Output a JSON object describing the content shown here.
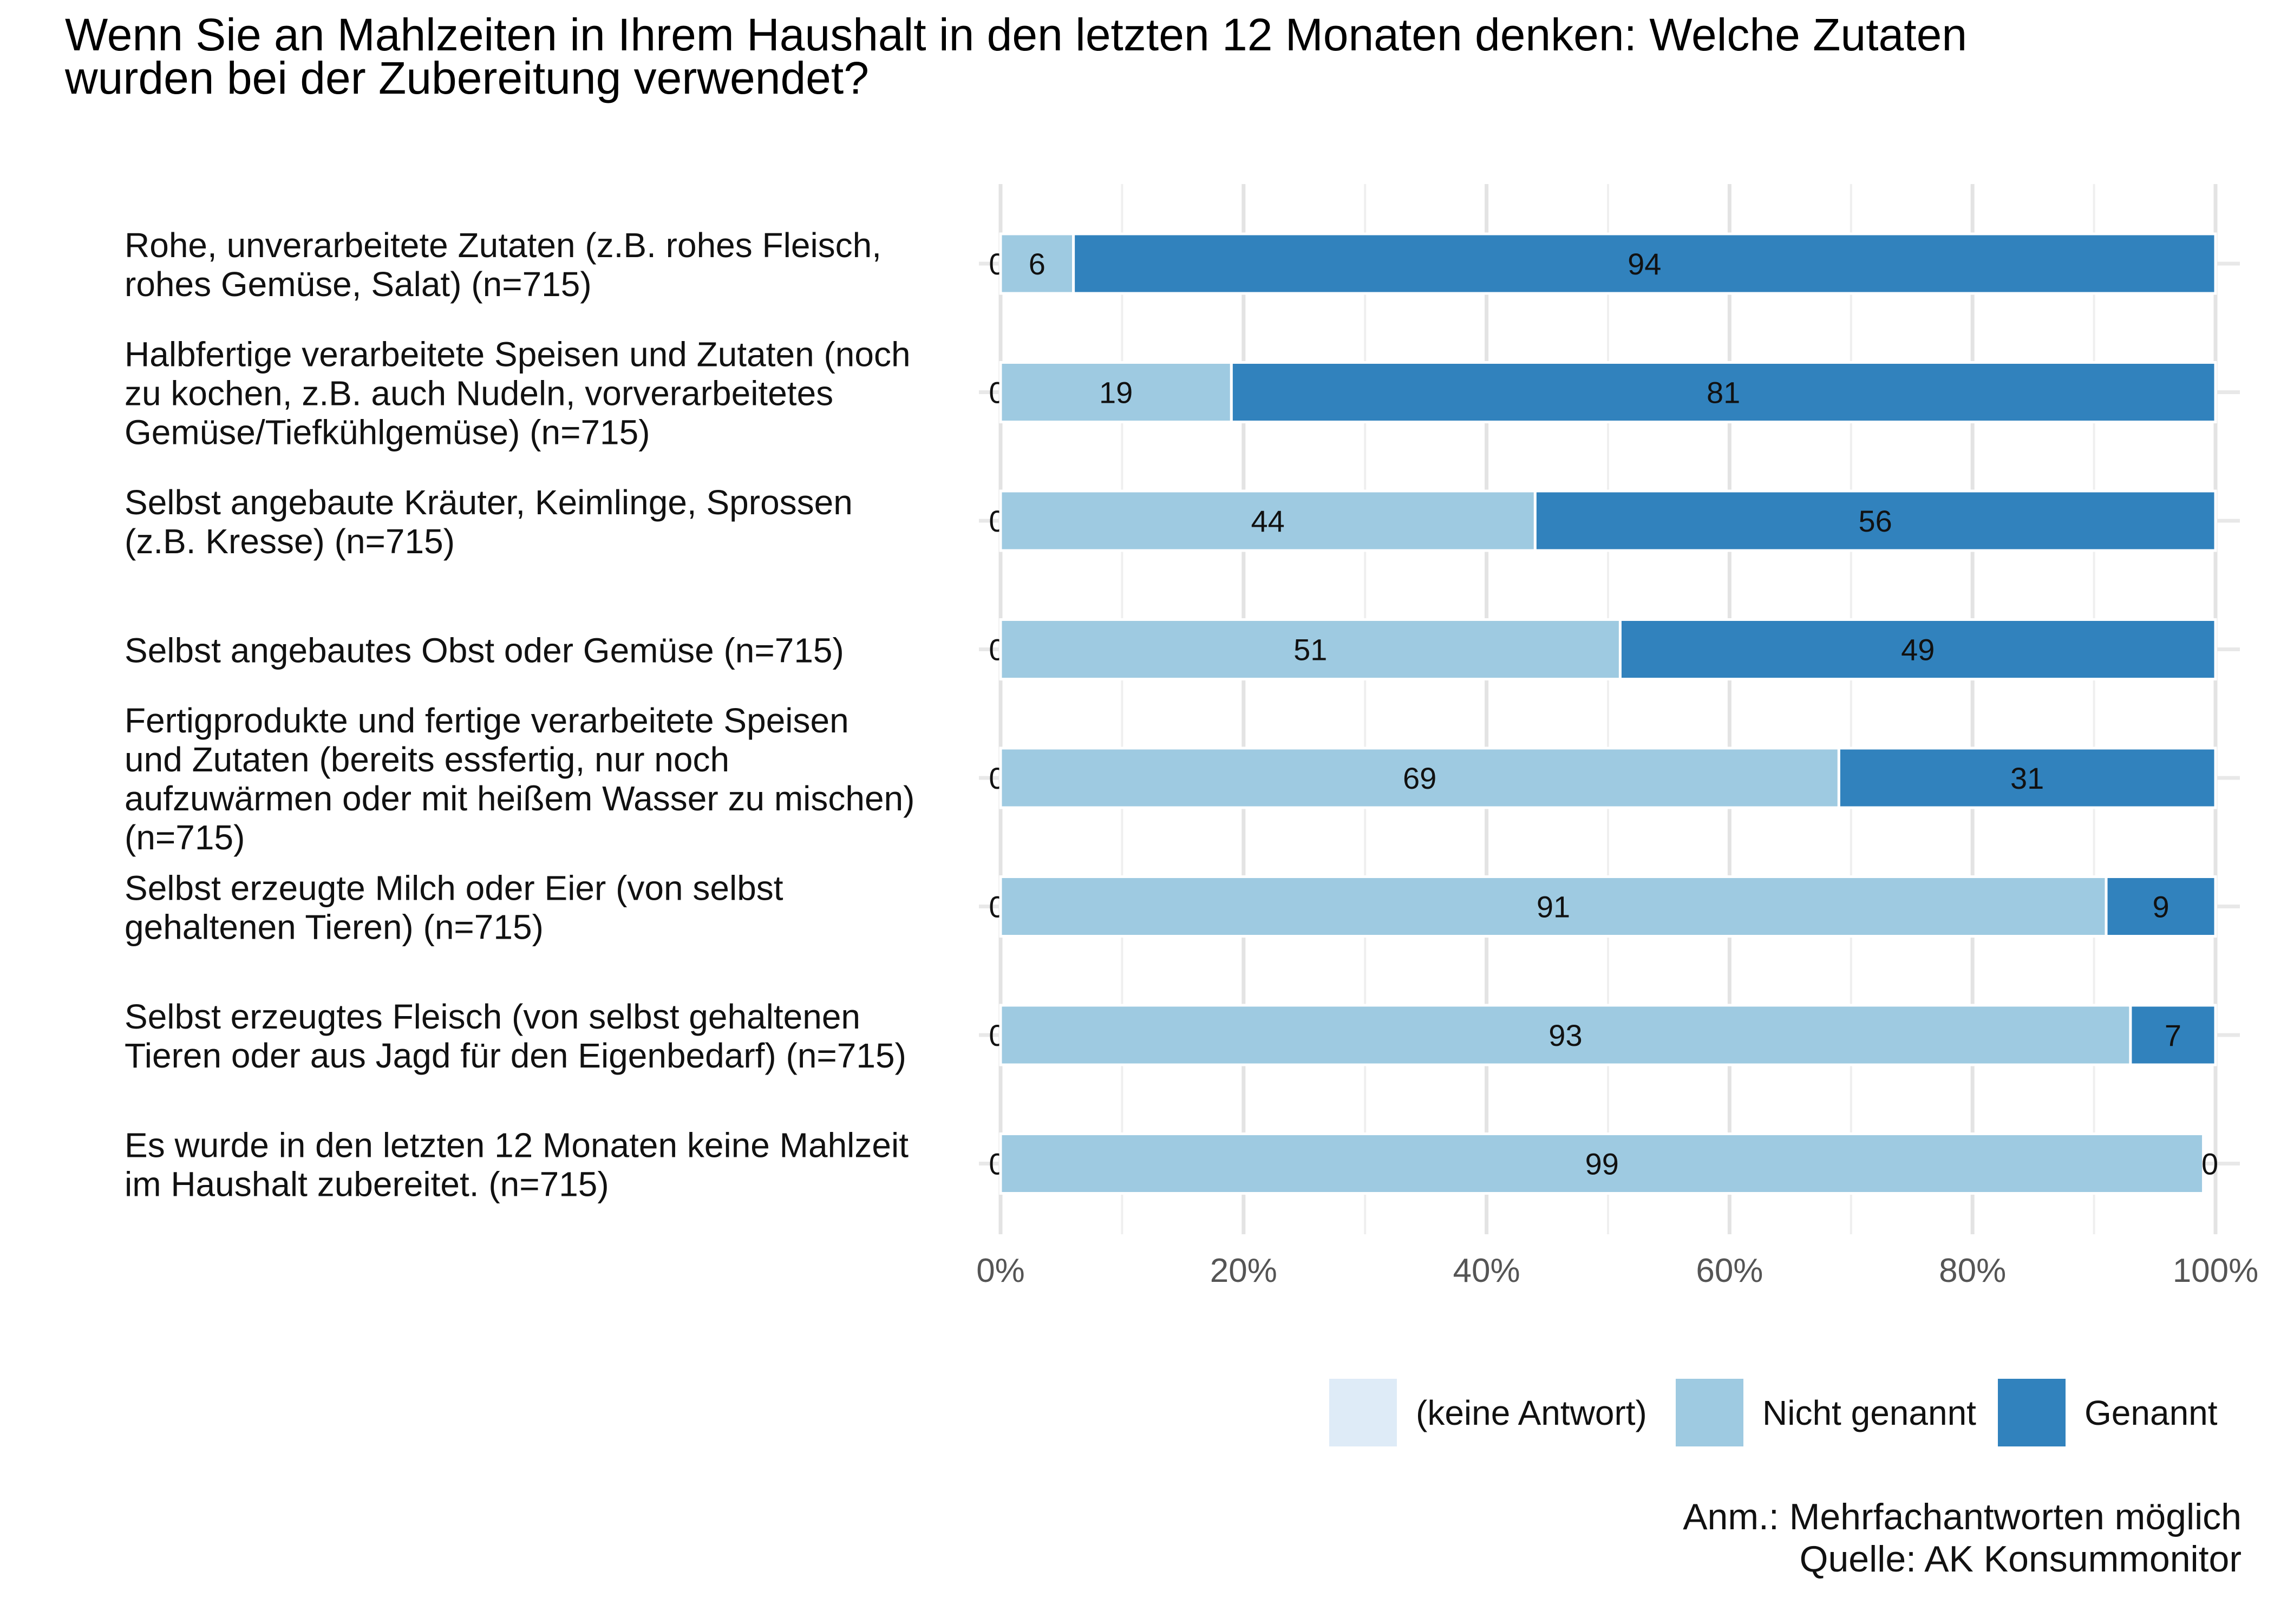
{
  "chart_data": {
    "type": "bar",
    "orientation": "horizontal",
    "stacked": true,
    "title": "Wenn Sie an Mahlzeiten in Ihrem Haushalt in den letzten 12 Monaten denken: Welche Zutaten wurden bei der Zubereitung verwendet?",
    "title_lines": [
      "Wenn Sie an Mahlzeiten in Ihrem Haushalt in den letzten 12 Monaten denken: Welche Zutaten",
      "wurden bei der Zubereitung verwendet?"
    ],
    "categories": [
      [
        "Rohe, unverarbeitete Zutaten (z.B. rohes Fleisch,",
        "rohes Gemüse, Salat) (n=715)"
      ],
      [
        "Halbfertige verarbeitete Speisen und Zutaten (noch",
        "zu kochen, z.B. auch Nudeln, vorverarbeitetes",
        "Gemüse/Tiefkühlgemüse) (n=715)"
      ],
      [
        "Selbst angebaute Kräuter, Keimlinge, Sprossen",
        "(z.B. Kresse) (n=715)"
      ],
      [
        "Selbst angebautes Obst oder Gemüse (n=715)"
      ],
      [
        "Fertigprodukte und fertige verarbeitete Speisen",
        "und Zutaten (bereits essfertig, nur noch",
        "aufzuwärmen oder mit heißem Wasser zu mischen)",
        "(n=715)"
      ],
      [
        "Selbst erzeugte Milch oder Eier (von selbst",
        "gehaltenen Tieren) (n=715)"
      ],
      [
        "Selbst erzeugtes Fleisch (von selbst gehaltenen",
        "Tieren oder aus Jagd für den Eigenbedarf) (n=715)"
      ],
      [
        "Es wurde in den letzten 12 Monaten keine Mahlzeit",
        "im Haushalt zubereitet. (n=715)"
      ]
    ],
    "series": [
      {
        "name": "(keine Antwort)",
        "color": "#deebf7",
        "values": [
          0,
          0,
          0,
          0,
          0,
          0,
          0,
          0
        ]
      },
      {
        "name": "Nicht genannt",
        "color": "#9ecae1",
        "values": [
          6,
          19,
          44,
          51,
          69,
          91,
          93,
          99
        ]
      },
      {
        "name": "Genannt",
        "color": "#3182bd",
        "values": [
          94,
          81,
          56,
          49,
          31,
          9,
          7,
          0
        ]
      }
    ],
    "xlim": [
      0,
      100
    ],
    "xticks": [
      "0%",
      "20%",
      "40%",
      "60%",
      "80%",
      "100%"
    ],
    "xtick_values": [
      0,
      20,
      40,
      60,
      80,
      100
    ],
    "grid": true,
    "legend_position": "bottom-right",
    "notes": [
      "Anm.: Mehrfachantworten möglich",
      "Quelle: AK Konsummonitor"
    ]
  }
}
